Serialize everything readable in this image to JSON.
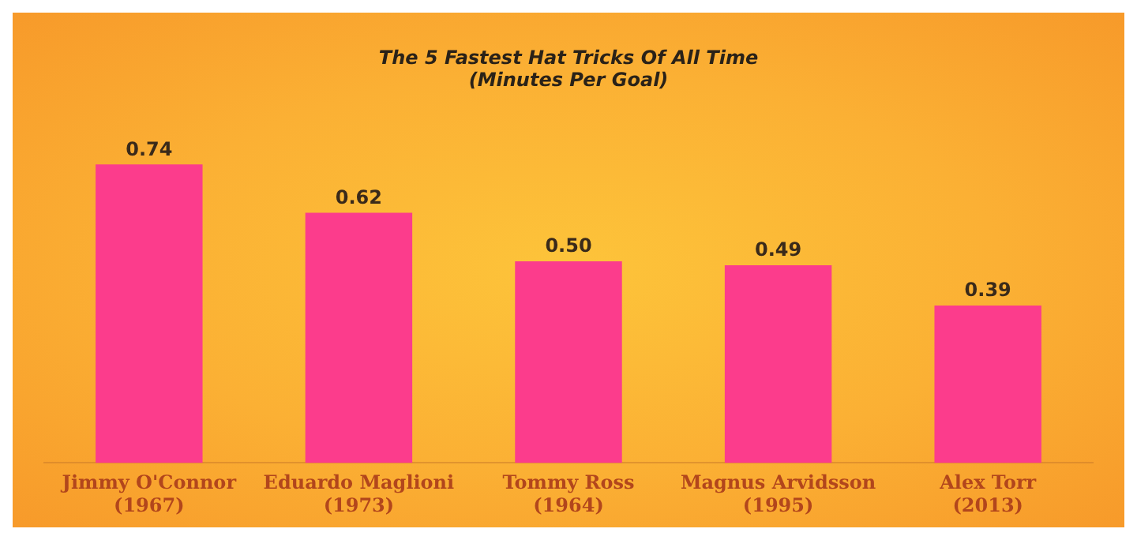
{
  "chart_data": {
    "type": "bar",
    "title": "The 5 Fastest Hat Tricks Of All Time\n(Minutes Per Goal)",
    "categories": [
      "Jimmy O'Connor\n(1967)",
      "Eduardo Maglioni\n(1973)",
      "Tommy Ross\n(1964)",
      "Magnus Arvidsson\n(1995)",
      "Alex Torr\n(2013)"
    ],
    "values": [
      0.74,
      0.62,
      0.5,
      0.49,
      0.39
    ],
    "color": "#fc3c8c",
    "value_labels": [
      "0.74",
      "0.62",
      "0.50",
      "0.49",
      "0.39"
    ],
    "grid": false,
    "legend": false
  }
}
